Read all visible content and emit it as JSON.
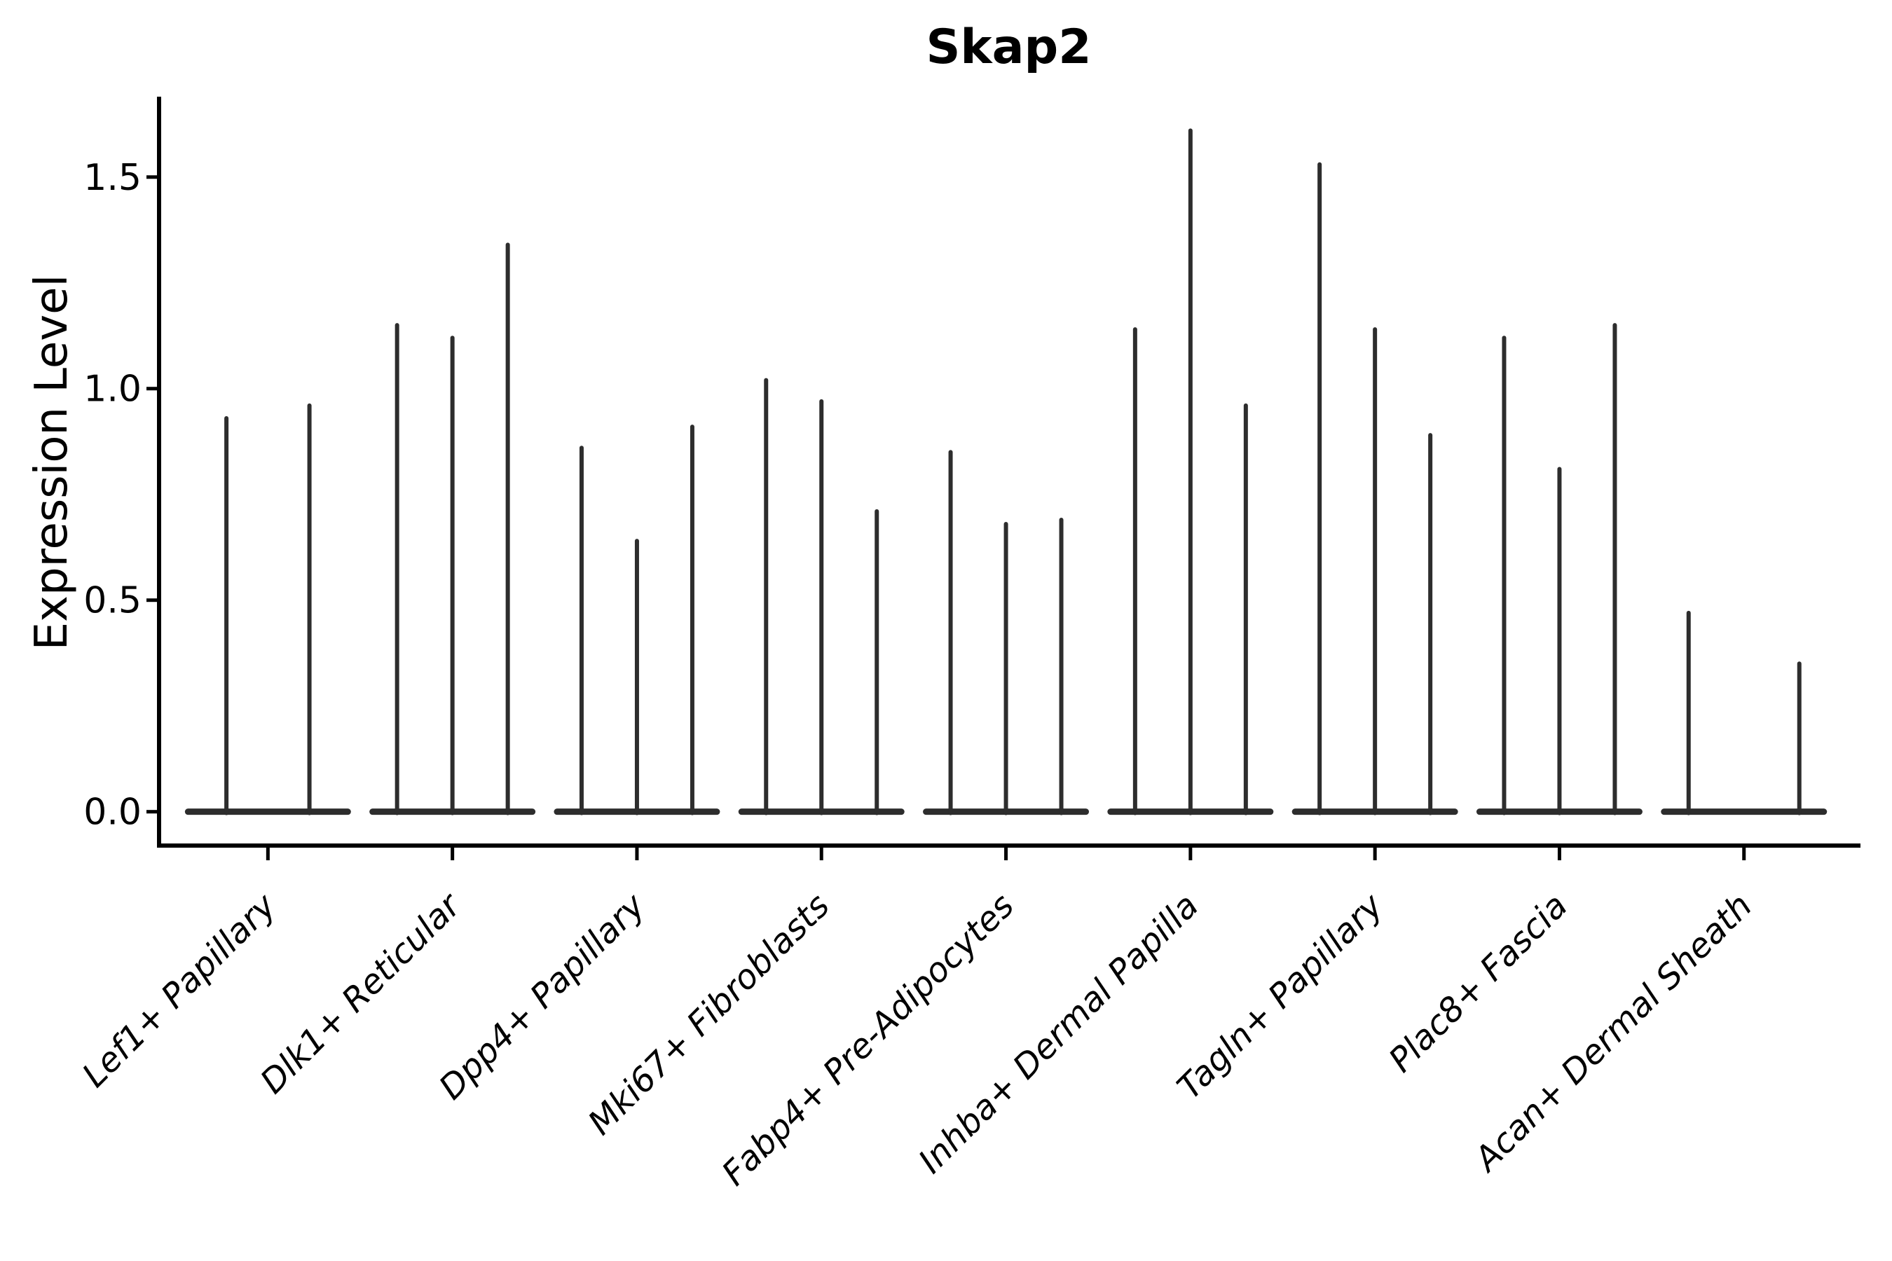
{
  "chart_data": {
    "type": "violin",
    "title": "Skap2",
    "ylabel": "Expression Level",
    "xlabel": "",
    "grid": false,
    "legend": null,
    "background": "#ffffff",
    "colors": {
      "violin": "#2d2d2d",
      "axis": "#000000",
      "text": "#000000"
    },
    "ylim": [
      -0.08,
      1.69
    ],
    "xlim": [
      0.41,
      9.62
    ],
    "y_ticks": [
      {
        "label": "0.0",
        "value": 0.0
      },
      {
        "label": "0.5",
        "value": 0.5
      },
      {
        "label": "1.0",
        "value": 1.0
      },
      {
        "label": "1.5",
        "value": 1.5
      }
    ],
    "violin_slot_width": 0.9,
    "categories": [
      {
        "label": "Lef1+ Papillary",
        "violins": [
          {
            "offset": -0.225,
            "max": 0.93
          },
          {
            "offset": 0.225,
            "max": 0.96
          }
        ]
      },
      {
        "label": "Dlk1+ Reticular",
        "violins": [
          {
            "offset": -0.3,
            "max": 1.15
          },
          {
            "offset": 0,
            "max": 1.12
          },
          {
            "offset": 0.3,
            "max": 1.34
          }
        ]
      },
      {
        "label": "Dpp4+ Papillary",
        "violins": [
          {
            "offset": -0.3,
            "max": 0.86
          },
          {
            "offset": 0,
            "max": 0.64
          },
          {
            "offset": 0.3,
            "max": 0.91
          }
        ]
      },
      {
        "label": "Mki67+ Fibroblasts",
        "violins": [
          {
            "offset": -0.3,
            "max": 1.02
          },
          {
            "offset": 0,
            "max": 0.97
          },
          {
            "offset": 0.3,
            "max": 0.71
          }
        ]
      },
      {
        "label": "Fabp4+ Pre-Adipocytes",
        "violins": [
          {
            "offset": -0.3,
            "max": 0.85
          },
          {
            "offset": 0,
            "max": 0.68
          },
          {
            "offset": 0.3,
            "max": 0.69
          }
        ]
      },
      {
        "label": "Inhba+ Dermal Papilla",
        "violins": [
          {
            "offset": -0.3,
            "max": 1.14
          },
          {
            "offset": 0,
            "max": 1.61
          },
          {
            "offset": 0.3,
            "max": 0.96
          }
        ]
      },
      {
        "label": "Tagln+ Papillary",
        "violins": [
          {
            "offset": -0.3,
            "max": 1.53
          },
          {
            "offset": 0,
            "max": 1.14
          },
          {
            "offset": 0.3,
            "max": 0.89
          }
        ]
      },
      {
        "label": "Plac8+ Fascia",
        "violins": [
          {
            "offset": -0.3,
            "max": 1.12
          },
          {
            "offset": 0,
            "max": 0.81
          },
          {
            "offset": 0.3,
            "max": 1.15
          }
        ]
      },
      {
        "label": "Acan+ Dermal Sheath",
        "violins": [
          {
            "offset": -0.3,
            "max": 0.47
          },
          {
            "offset": 0.3,
            "max": 0.35
          }
        ]
      }
    ]
  }
}
